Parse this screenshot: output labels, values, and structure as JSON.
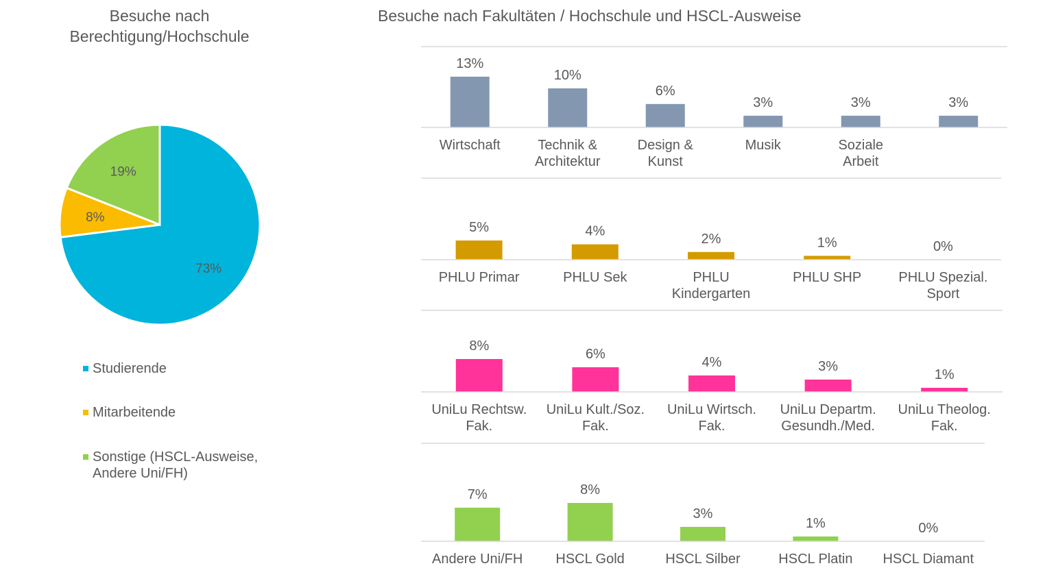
{
  "pie_title": "Besuche nach Berechtigung/Hochschule",
  "bar_title": "Besuche nach Fakultäten / Hochschule und HSCL-Ausweise",
  "legend": [
    {
      "label": "Studierende",
      "color": "#00b4dc"
    },
    {
      "label": "Mitarbeitende",
      "color": "#fbbb00"
    },
    {
      "label": "Sonstige (HSCL-Ausweise,\nAndere Uni/FH)",
      "color": "#92d050"
    }
  ],
  "chart_data": [
    {
      "type": "pie",
      "title": "Besuche nach Berechtigung/Hochschule",
      "categories": [
        "Studierende",
        "Mitarbeitende",
        "Sonstige (HSCL-Ausweise, Andere Uni/FH)"
      ],
      "values": [
        73,
        8,
        19
      ],
      "labels": [
        "73%",
        "8%",
        "19%"
      ],
      "colors": [
        "#00b4dc",
        "#fbbb00",
        "#92d050"
      ]
    },
    {
      "type": "bar",
      "title": "Besuche nach Fakultäten / Hochschule und HSCL-Ausweise",
      "color": "#8497b0",
      "categories": [
        "Wirtschaft",
        "Technik &\nArchitektur",
        "Design &\nKunst",
        "Musik",
        "Soziale\nArbeit",
        ""
      ],
      "values": [
        13,
        10,
        6,
        3,
        3,
        3
      ],
      "labels": [
        "13%",
        "10%",
        "6%",
        "3%",
        "3%",
        "3%"
      ]
    },
    {
      "type": "bar",
      "color": "#d49b00",
      "categories": [
        "PHLU Primar",
        "PHLU Sek",
        "PHLU\nKindergarten",
        "PHLU SHP",
        "PHLU Spezial.\nSport"
      ],
      "values": [
        5,
        4,
        2,
        1,
        0
      ],
      "labels": [
        "5%",
        "4%",
        "2%",
        "1%",
        "0%"
      ]
    },
    {
      "type": "bar",
      "color": "#ff3399",
      "categories": [
        "UniLu Rechtsw.\nFak.",
        "UniLu Kult./Soz.\nFak.",
        "UniLu Wirtsch.\nFak.",
        "UniLu Departm.\nGesundh./Med.",
        "UniLu Theolog.\nFak."
      ],
      "values": [
        8,
        6,
        4,
        3,
        1
      ],
      "labels": [
        "8%",
        "6%",
        "4%",
        "3%",
        "1%"
      ]
    },
    {
      "type": "bar",
      "color": "#92d050",
      "categories": [
        "Andere Uni/FH",
        "HSCL Gold",
        "HSCL Silber",
        "HSCL Platin",
        "HSCL  Diamant"
      ],
      "values": [
        7,
        8,
        3,
        1,
        0
      ],
      "labels": [
        "7%",
        "8%",
        "3%",
        "1%",
        "0%"
      ]
    }
  ]
}
